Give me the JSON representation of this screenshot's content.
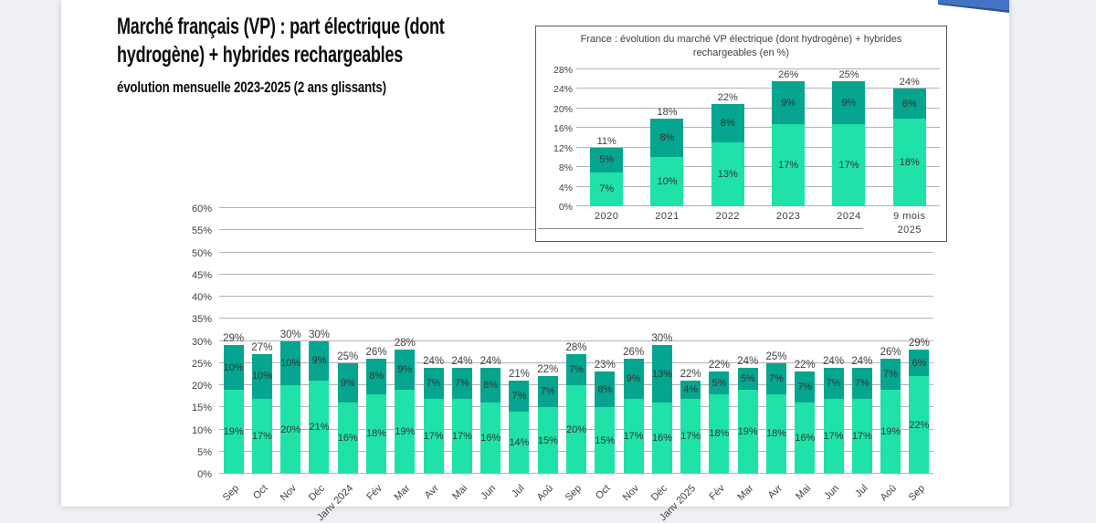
{
  "header": {
    "title_lines": [
      "Marché français (VP) : part électrique (dont",
      "hydrogène) + hybrides rechargeables"
    ],
    "subtitle": "évolution mensuelle 2023-2025 (2 ans glissants)"
  },
  "colors": {
    "segment_bottom": "#1fe2a8",
    "segment_top": "#06a58f",
    "gridline": "#b3b3b3",
    "label_text": "#404040",
    "ribbon_blue": "#4472c4",
    "ribbon_edge_blue": "#2f5597",
    "page_background": "#ffffff",
    "app_background": "#eef0f3"
  },
  "chart_data": [
    {
      "id": "monthly-evolution",
      "type": "bar",
      "stacked": true,
      "title": "",
      "categories": [
        "Sep",
        "Oct",
        "Nov",
        "Déc",
        "Janv 2024",
        "Fév",
        "Mar",
        "Avr",
        "Mai",
        "Jun",
        "Jul",
        "Aoû",
        "Sep",
        "Oct",
        "Nov",
        "Déc",
        "Janv 2025",
        "Fév",
        "Mar",
        "Avr",
        "Mai",
        "Jun",
        "Jul",
        "Aoû",
        "Sep"
      ],
      "series": [
        {
          "name": "segment_bottom",
          "values": [
            19,
            17,
            20,
            21,
            16,
            18,
            19,
            17,
            17,
            16,
            14,
            15,
            20,
            15,
            17,
            16,
            17,
            18,
            19,
            18,
            16,
            17,
            17,
            19,
            22
          ]
        },
        {
          "name": "segment_top",
          "values": [
            10,
            10,
            10,
            9,
            9,
            8,
            9,
            7,
            7,
            8,
            7,
            7,
            7,
            8,
            9,
            13,
            4,
            5,
            5,
            7,
            7,
            7,
            7,
            7,
            6
          ]
        }
      ],
      "segment_label_suffix": "%",
      "total_labels": [
        "29%",
        "27%",
        "30%",
        "30%",
        "25%",
        "26%",
        "28%",
        "24%",
        "24%",
        "24%",
        "21%",
        "22%",
        "28%",
        "23%",
        "26%",
        "30%",
        "22%",
        "22%",
        "24%",
        "25%",
        "22%",
        "24%",
        "24%",
        "26%",
        "29%"
      ],
      "ylim": [
        0,
        60
      ],
      "y_tick_step": 5,
      "y_tick_suffix": "%",
      "grid": true,
      "legend": "none",
      "x_label_rotation": -45
    },
    {
      "id": "yearly-evolution",
      "type": "bar",
      "stacked": true,
      "title": "France : évolution du marché VP électrique (dont hydrogène) + hybrides rechargeables (en %)",
      "categories": [
        "2020",
        "2021",
        "2022",
        "2023",
        "2024",
        "9 mois\n2025"
      ],
      "series": [
        {
          "name": "segment_bottom",
          "values": [
            7,
            10,
            13,
            17,
            17,
            18
          ]
        },
        {
          "name": "segment_top",
          "values": [
            5,
            8,
            8,
            9,
            9,
            6
          ]
        }
      ],
      "segment_label_suffix": "%",
      "total_labels": [
        "11%",
        "18%",
        "22%",
        "26%",
        "25%",
        "24%"
      ],
      "ylim": [
        0,
        28
      ],
      "y_tick_step": 4,
      "y_tick_suffix": "%",
      "grid": true,
      "legend": "none",
      "x_label_rotation": 0
    }
  ]
}
